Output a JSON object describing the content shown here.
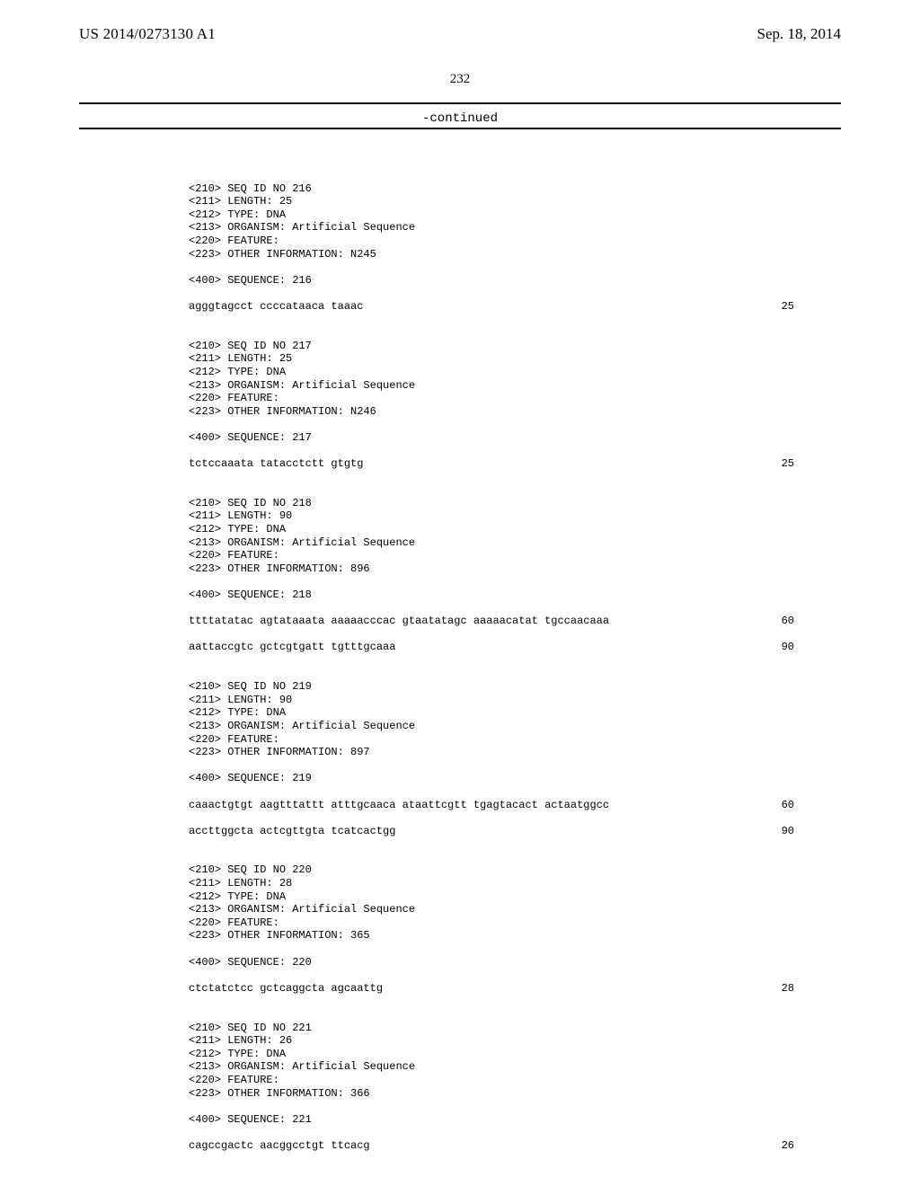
{
  "header": {
    "left": "US 2014/0273130 A1",
    "right": "Sep. 18, 2014"
  },
  "page_number": "232",
  "continued": "-continued",
  "blocks": [
    {
      "meta": [
        "<210> SEQ ID NO 216",
        "<211> LENGTH: 25",
        "<212> TYPE: DNA",
        "<213> ORGANISM: Artificial Sequence",
        "<220> FEATURE:",
        "<223> OTHER INFORMATION: N245"
      ],
      "seqline": "<400> SEQUENCE: 216",
      "rows": [
        {
          "l": "agggtagcct ccccataaca taaac",
          "r": "25"
        }
      ]
    },
    {
      "meta": [
        "<210> SEQ ID NO 217",
        "<211> LENGTH: 25",
        "<212> TYPE: DNA",
        "<213> ORGANISM: Artificial Sequence",
        "<220> FEATURE:",
        "<223> OTHER INFORMATION: N246"
      ],
      "seqline": "<400> SEQUENCE: 217",
      "rows": [
        {
          "l": "tctccaaata tatacctctt gtgtg",
          "r": "25"
        }
      ]
    },
    {
      "meta": [
        "<210> SEQ ID NO 218",
        "<211> LENGTH: 90",
        "<212> TYPE: DNA",
        "<213> ORGANISM: Artificial Sequence",
        "<220> FEATURE:",
        "<223> OTHER INFORMATION: 896"
      ],
      "seqline": "<400> SEQUENCE: 218",
      "rows": [
        {
          "l": "ttttatatac agtataaata aaaaacccac gtaatatagc aaaaacatat tgccaacaaa",
          "r": "60"
        },
        {
          "l": "aattaccgtc gctcgtgatt tgtttgcaaa",
          "r": "90"
        }
      ]
    },
    {
      "meta": [
        "<210> SEQ ID NO 219",
        "<211> LENGTH: 90",
        "<212> TYPE: DNA",
        "<213> ORGANISM: Artificial Sequence",
        "<220> FEATURE:",
        "<223> OTHER INFORMATION: 897"
      ],
      "seqline": "<400> SEQUENCE: 219",
      "rows": [
        {
          "l": "caaactgtgt aagtttattt atttgcaaca ataattcgtt tgagtacact actaatggcc",
          "r": "60"
        },
        {
          "l": "accttggcta actcgttgta tcatcactgg",
          "r": "90"
        }
      ]
    },
    {
      "meta": [
        "<210> SEQ ID NO 220",
        "<211> LENGTH: 28",
        "<212> TYPE: DNA",
        "<213> ORGANISM: Artificial Sequence",
        "<220> FEATURE:",
        "<223> OTHER INFORMATION: 365"
      ],
      "seqline": "<400> SEQUENCE: 220",
      "rows": [
        {
          "l": "ctctatctcc gctcaggcta agcaattg",
          "r": "28"
        }
      ]
    },
    {
      "meta": [
        "<210> SEQ ID NO 221",
        "<211> LENGTH: 26",
        "<212> TYPE: DNA",
        "<213> ORGANISM: Artificial Sequence",
        "<220> FEATURE:",
        "<223> OTHER INFORMATION: 366"
      ],
      "seqline": "<400> SEQUENCE: 221",
      "rows": [
        {
          "l": "cagccgactc aacggcctgt ttcacg",
          "r": "26"
        }
      ]
    }
  ]
}
